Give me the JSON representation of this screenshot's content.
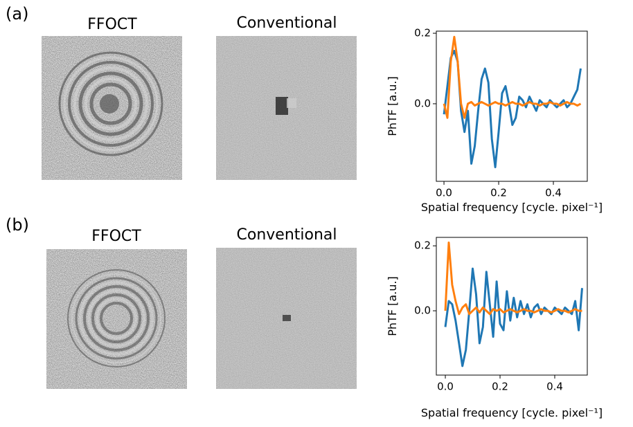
{
  "panels": [
    {
      "label": "(a)",
      "image_titles": [
        "FFOCT",
        "Conventional"
      ]
    },
    {
      "label": "(b)",
      "image_titles": [
        "FFOCT",
        "Conventional"
      ]
    }
  ],
  "chart_data": [
    {
      "type": "line",
      "x_label": "Spatial frequency [cycle. pixel⁻¹]",
      "y_label": "PhTF [a.u.]",
      "x": [
        0,
        0.0125,
        0.025,
        0.0375,
        0.05,
        0.0625,
        0.075,
        0.0875,
        0.1,
        0.1125,
        0.125,
        0.1375,
        0.15,
        0.1625,
        0.175,
        0.1875,
        0.2,
        0.2125,
        0.225,
        0.2375,
        0.25,
        0.2625,
        0.275,
        0.2875,
        0.3,
        0.3125,
        0.325,
        0.3375,
        0.35,
        0.3625,
        0.375,
        0.3875,
        0.4,
        0.4125,
        0.425,
        0.4375,
        0.45,
        0.4625,
        0.475,
        0.4875,
        0.5
      ],
      "series": [
        {
          "color": "#1f77b4",
          "values": [
            -0.03,
            0.05,
            0.13,
            0.15,
            0.12,
            -0.02,
            -0.08,
            -0.02,
            -0.17,
            -0.12,
            -0.02,
            0.07,
            0.1,
            0.06,
            -0.1,
            -0.18,
            -0.08,
            0.03,
            0.05,
            0,
            -0.06,
            -0.04,
            0.02,
            0.01,
            -0.01,
            0.02,
            0,
            -0.02,
            0.01,
            0,
            -0.01,
            0.01,
            0,
            -0.01,
            0,
            0.01,
            -0.01,
            0,
            0.02,
            0.04,
            0.1
          ]
        },
        {
          "color": "#ff7f0e",
          "values": [
            0,
            -0.04,
            0.12,
            0.19,
            0.12,
            0,
            -0.04,
            0,
            0.005,
            -0.005,
            0,
            0.005,
            0,
            -0.005,
            0,
            0.005,
            0,
            0,
            -0.005,
            0,
            0.005,
            0,
            0,
            -0.005,
            0,
            0.005,
            0,
            0,
            -0.005,
            0,
            0,
            0.005,
            0,
            0,
            -0.005,
            0,
            0.005,
            0,
            0,
            -0.005,
            0
          ]
        }
      ],
      "xlim": [
        -0.028,
        0.524
      ],
      "ylim": [
        -0.22,
        0.206
      ],
      "xticks": [
        {
          "value": 0,
          "label": "0.0"
        },
        {
          "value": 0.2,
          "label": "0.2"
        },
        {
          "value": 0.4,
          "label": "0.4"
        }
      ],
      "yticks": [
        {
          "value": 0,
          "label": "0.0"
        },
        {
          "value": 0.2,
          "label": "0.2"
        }
      ]
    },
    {
      "type": "line",
      "x_label": "Spatial frequency [cycle. pixel⁻¹]",
      "y_label": "PhTF [a.u.]",
      "x": [
        0,
        0.0125,
        0.025,
        0.0375,
        0.05,
        0.0625,
        0.075,
        0.0875,
        0.1,
        0.1125,
        0.125,
        0.1375,
        0.15,
        0.1625,
        0.175,
        0.1875,
        0.2,
        0.2125,
        0.225,
        0.2375,
        0.25,
        0.2625,
        0.275,
        0.2875,
        0.3,
        0.3125,
        0.325,
        0.3375,
        0.35,
        0.3625,
        0.375,
        0.3875,
        0.4,
        0.4125,
        0.425,
        0.4375,
        0.45,
        0.4625,
        0.475,
        0.4875,
        0.5
      ],
      "series": [
        {
          "color": "#1f77b4",
          "values": [
            -0.05,
            0.03,
            0.02,
            -0.03,
            -0.1,
            -0.17,
            -0.12,
            0,
            0.13,
            0.05,
            -0.1,
            -0.05,
            0.12,
            0.02,
            -0.08,
            0.09,
            -0.04,
            -0.06,
            0.06,
            -0.03,
            0.04,
            -0.02,
            0.03,
            -0.01,
            0.02,
            -0.02,
            0.01,
            0.02,
            -0.01,
            0.01,
            0,
            -0.01,
            0.01,
            0,
            -0.01,
            0.01,
            0,
            -0.01,
            0.03,
            -0.06,
            0.07
          ]
        },
        {
          "color": "#ff7f0e",
          "values": [
            0,
            0.21,
            0.08,
            0.03,
            -0.01,
            0.01,
            0.02,
            -0.01,
            0,
            0.01,
            -0.005,
            0.01,
            0,
            -0.01,
            0.005,
            0,
            0.005,
            -0.005,
            0,
            0.005,
            0,
            -0.005,
            0,
            0.005,
            0,
            0,
            -0.005,
            0,
            0.005,
            0,
            0,
            -0.005,
            0,
            0.005,
            0,
            0,
            -0.005,
            0,
            0.005,
            0,
            0
          ]
        }
      ],
      "xlim": [
        -0.033,
        0.519
      ],
      "ylim": [
        -0.198,
        0.226
      ],
      "xticks": [
        {
          "value": 0,
          "label": "0.0"
        },
        {
          "value": 0.2,
          "label": "0.2"
        },
        {
          "value": 0.4,
          "label": "0.4"
        }
      ],
      "yticks": [
        {
          "value": 0,
          "label": "0.0"
        },
        {
          "value": 0.2,
          "label": "0.2"
        }
      ]
    }
  ]
}
